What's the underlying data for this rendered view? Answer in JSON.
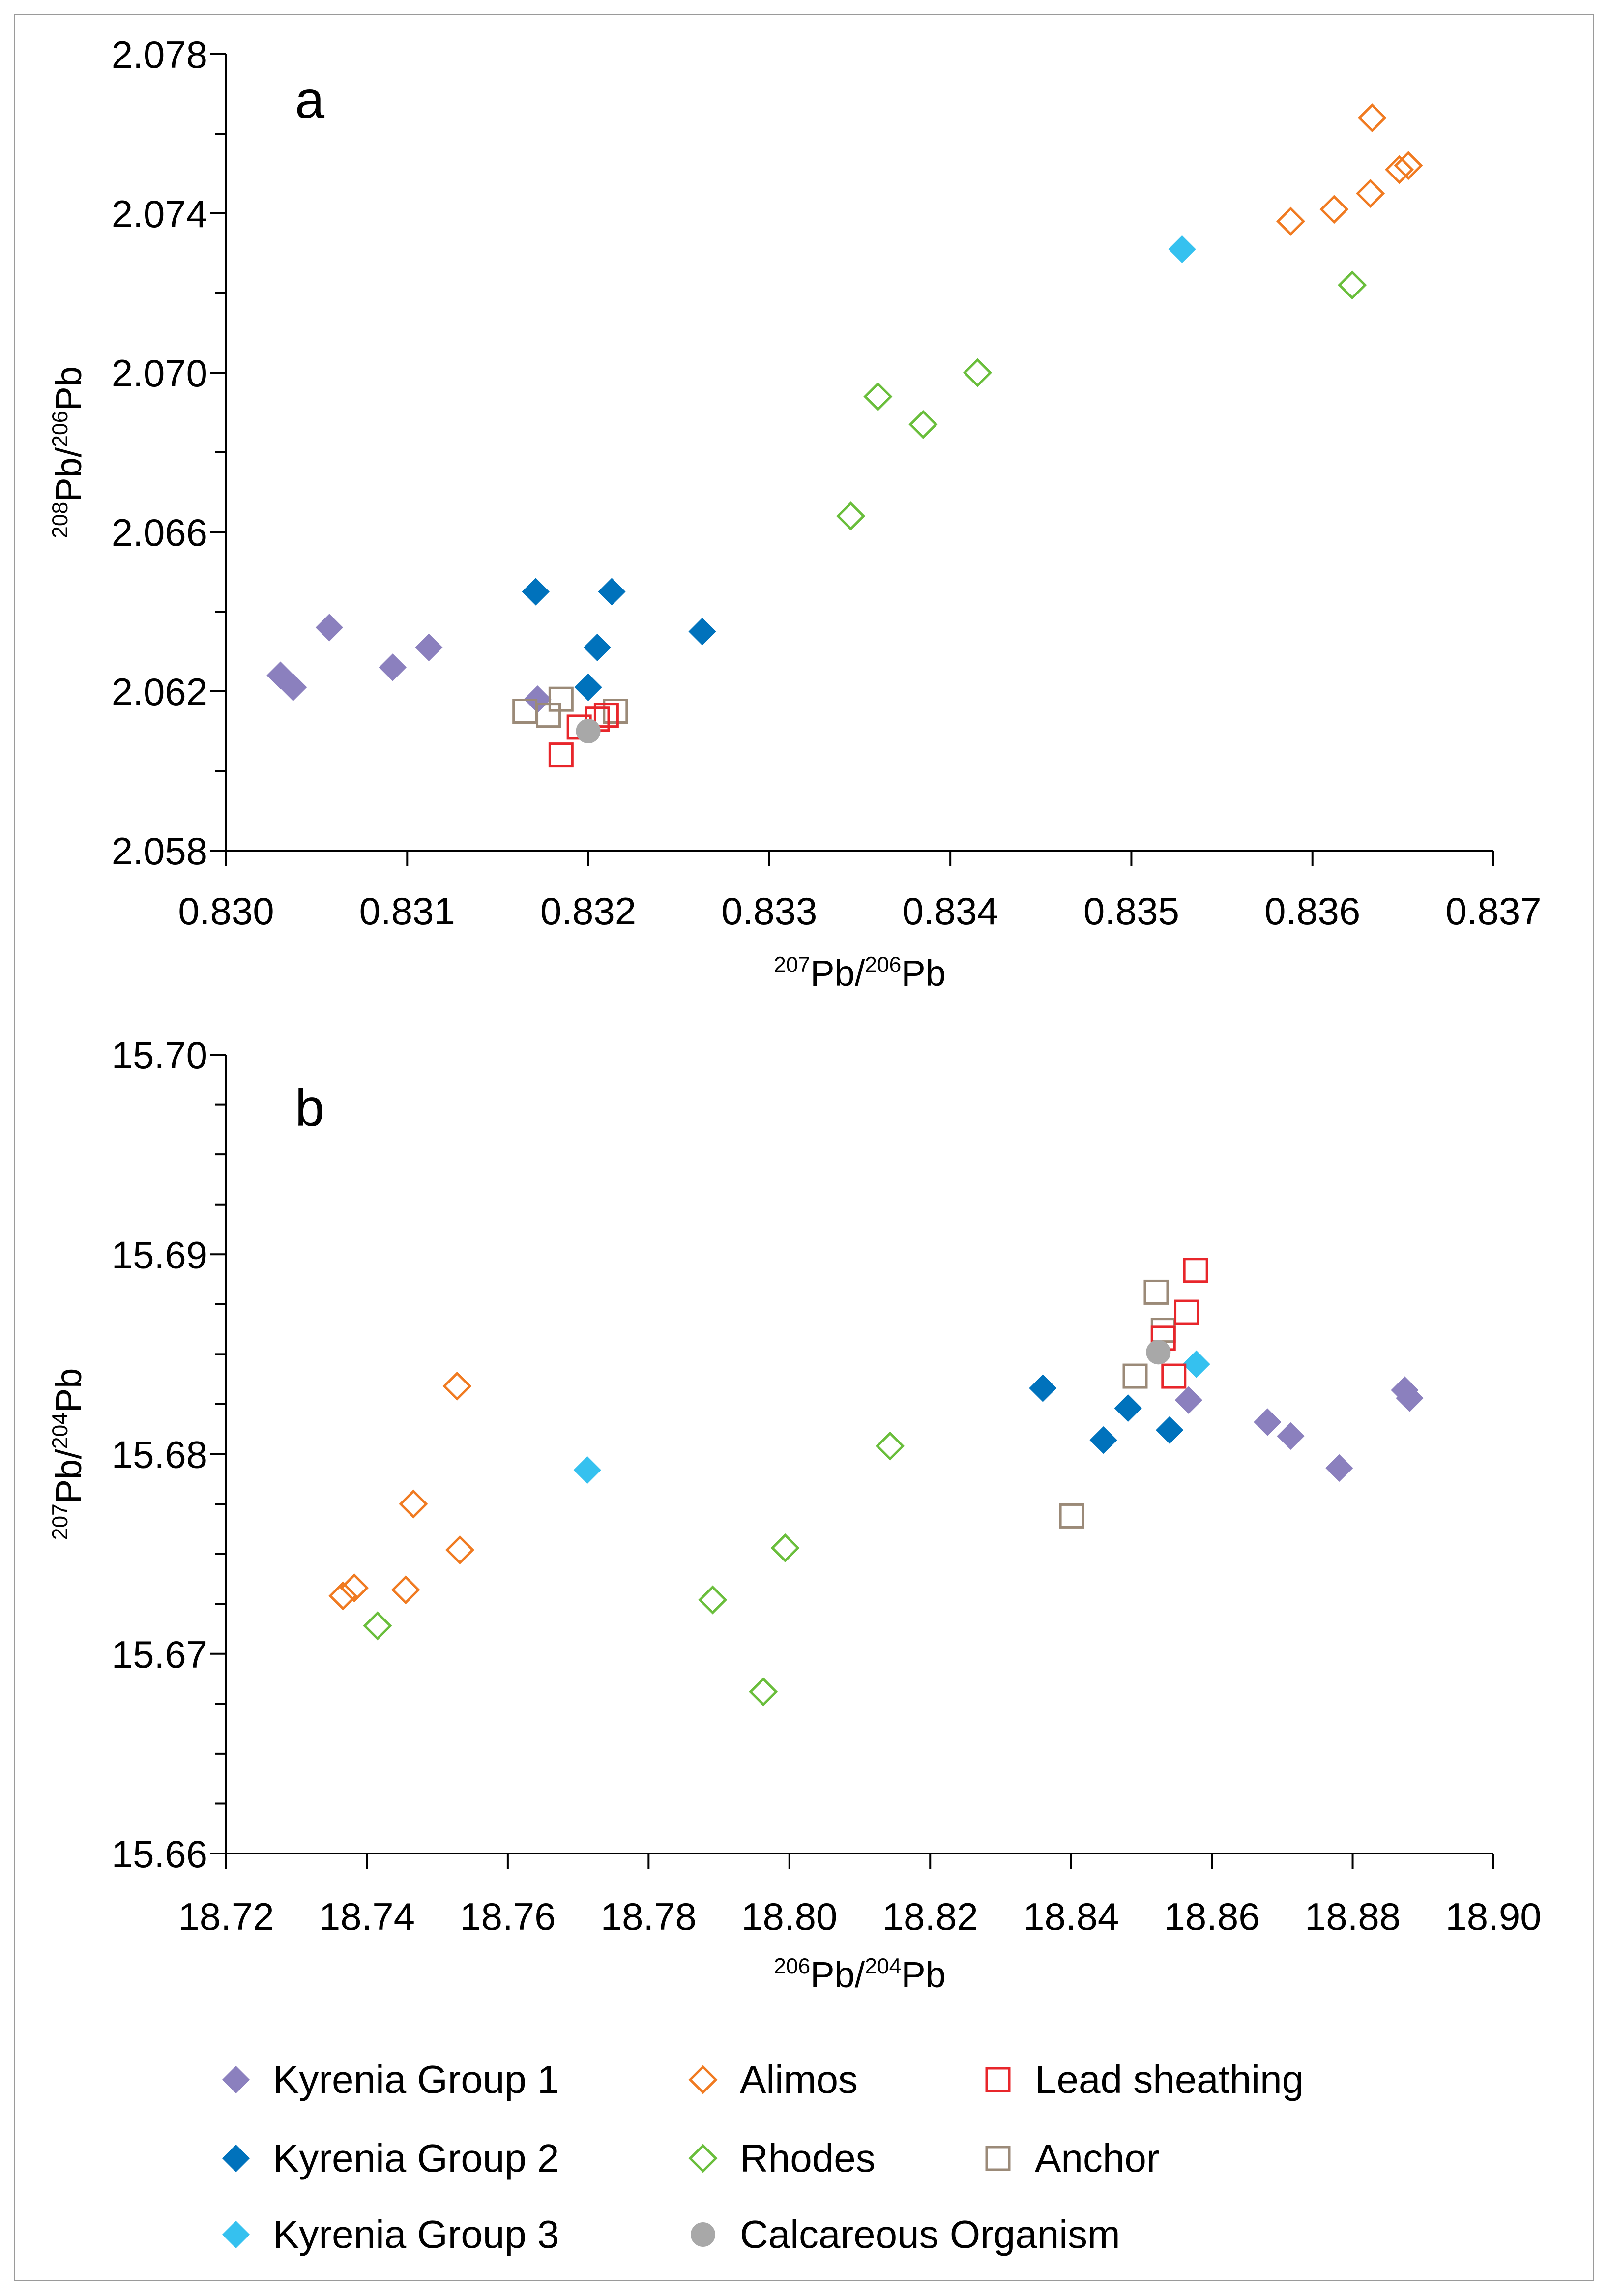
{
  "colors": {
    "kyrenia1": "#8b80be",
    "kyrenia2": "#0072bc",
    "kyrenia3": "#35c1ef",
    "alimos": "#f07b22",
    "rhodes": "#6abe3c",
    "lead": "#e8262b",
    "anchor": "#9b8a78",
    "calcareous": "#a8a8a8",
    "axis": "#000000"
  },
  "chart_data": [
    {
      "id": "a",
      "type": "scatter",
      "panel_label": "a",
      "xlabel": {
        "pre": "207",
        "base1": "Pb/",
        "sup2": "206",
        "base2": "Pb"
      },
      "ylabel": {
        "pre": "208",
        "base1": "Pb/",
        "sup2": "206",
        "base2": "Pb"
      },
      "xlim": [
        0.83,
        0.837
      ],
      "ylim": [
        2.058,
        2.078
      ],
      "xticks": [
        "0.830",
        "0.831",
        "0.832",
        "0.833",
        "0.834",
        "0.835",
        "0.836",
        "0.837"
      ],
      "yticks": [
        "2.058",
        "2.062",
        "2.066",
        "2.070",
        "2.074",
        "2.078"
      ],
      "series": [
        {
          "name": "Kyrenia Group 1",
          "marker": "diamond-filled",
          "color_key": "kyrenia1",
          "points": [
            [
              0.8303,
              2.0624
            ],
            [
              0.83037,
              2.0621
            ],
            [
              0.83057,
              2.0636
            ],
            [
              0.83092,
              2.0626
            ],
            [
              0.83112,
              2.0631
            ],
            [
              0.83172,
              2.0618
            ]
          ]
        },
        {
          "name": "Kyrenia Group 2",
          "marker": "diamond-filled",
          "color_key": "kyrenia2",
          "points": [
            [
              0.83171,
              2.0645
            ],
            [
              0.83213,
              2.0645
            ],
            [
              0.83263,
              2.0635
            ],
            [
              0.83205,
              2.0631
            ],
            [
              0.832,
              2.0621
            ]
          ]
        },
        {
          "name": "Kyrenia Group 3",
          "marker": "diamond-filled",
          "color_key": "kyrenia3",
          "points": [
            [
              0.83528,
              2.0731
            ]
          ]
        },
        {
          "name": "Alimos",
          "marker": "diamond-open",
          "color_key": "alimos",
          "points": [
            [
              0.83633,
              2.0764
            ],
            [
              0.83648,
              2.0751
            ],
            [
              0.83653,
              2.0752
            ],
            [
              0.83632,
              2.0745
            ],
            [
              0.83612,
              2.0741
            ],
            [
              0.83588,
              2.0738
            ]
          ]
        },
        {
          "name": "Rhodes",
          "marker": "diamond-open",
          "color_key": "rhodes",
          "points": [
            [
              0.83622,
              2.0722
            ],
            [
              0.83415,
              2.07
            ],
            [
              0.8336,
              2.0694
            ],
            [
              0.83385,
              2.0687
            ],
            [
              0.83345,
              2.0664
            ]
          ]
        },
        {
          "name": "Lead sheathing",
          "marker": "square-open",
          "color_key": "lead",
          "points": [
            [
              0.83185,
              2.0604
            ],
            [
              0.8321,
              2.0614
            ],
            [
              0.83195,
              2.0611
            ],
            [
              0.83205,
              2.0613
            ]
          ]
        },
        {
          "name": "Anchor",
          "marker": "square-open",
          "color_key": "anchor",
          "points": [
            [
              0.83165,
              2.0615
            ],
            [
              0.83178,
              2.0614
            ],
            [
              0.83185,
              2.0618
            ],
            [
              0.83215,
              2.0615
            ]
          ]
        },
        {
          "name": "Calcareous Organism",
          "marker": "circle-filled",
          "color_key": "calcareous",
          "points": [
            [
              0.832,
              2.061
            ]
          ]
        }
      ]
    },
    {
      "id": "b",
      "type": "scatter",
      "panel_label": "b",
      "xlabel": {
        "pre": "206",
        "base1": "Pb/",
        "sup2": "204",
        "base2": "Pb"
      },
      "ylabel": {
        "pre": "207",
        "base1": "Pb/",
        "sup2": "204",
        "base2": "Pb"
      },
      "xlim": [
        18.72,
        18.9
      ],
      "ylim": [
        15.66,
        15.7
      ],
      "xticks": [
        "18.72",
        "18.74",
        "18.76",
        "18.78",
        "18.80",
        "18.82",
        "18.84",
        "18.86",
        "18.88",
        "18.90"
      ],
      "yticks": [
        "15.66",
        "15.67",
        "15.68",
        "15.69",
        "15.70"
      ],
      "series": [
        {
          "name": "Kyrenia Group 1",
          "marker": "diamond-filled",
          "color_key": "kyrenia1",
          "points": [
            [
              18.8567,
              15.6827
            ],
            [
              18.8679,
              15.6816
            ],
            [
              18.8712,
              15.6809
            ],
            [
              18.8781,
              15.6793
            ],
            [
              18.8874,
              15.6832
            ],
            [
              18.8881,
              15.6828
            ]
          ]
        },
        {
          "name": "Kyrenia Group 2",
          "marker": "diamond-filled",
          "color_key": "kyrenia2",
          "points": [
            [
              18.836,
              15.6833
            ],
            [
              18.8446,
              15.6807
            ],
            [
              18.8481,
              15.6823
            ],
            [
              18.854,
              15.6812
            ]
          ]
        },
        {
          "name": "Kyrenia Group 3",
          "marker": "diamond-filled",
          "color_key": "kyrenia3",
          "points": [
            [
              18.7713,
              15.6792
            ],
            [
              18.8578,
              15.6845
            ]
          ]
        },
        {
          "name": "Alimos",
          "marker": "diamond-open",
          "color_key": "alimos",
          "points": [
            [
              18.7528,
              15.6834
            ],
            [
              18.7466,
              15.6775
            ],
            [
              18.7532,
              15.6752
            ],
            [
              18.7366,
              15.6729
            ],
            [
              18.7382,
              15.6733
            ],
            [
              18.7455,
              15.6732
            ]
          ]
        },
        {
          "name": "Rhodes",
          "marker": "diamond-open",
          "color_key": "rhodes",
          "points": [
            [
              18.8143,
              15.6804
            ],
            [
              18.7994,
              15.6753
            ],
            [
              18.7891,
              15.6727
            ],
            [
              18.7415,
              15.6714
            ],
            [
              18.7963,
              15.6681
            ]
          ]
        },
        {
          "name": "Lead sheathing",
          "marker": "square-open",
          "color_key": "lead",
          "points": [
            [
              18.8577,
              15.6892
            ],
            [
              18.8564,
              15.6871
            ],
            [
              18.8531,
              15.6858
            ],
            [
              18.8546,
              15.6839
            ]
          ]
        },
        {
          "name": "Anchor",
          "marker": "square-open",
          "color_key": "anchor",
          "points": [
            [
              18.8521,
              15.6881
            ],
            [
              18.8531,
              15.6862
            ],
            [
              18.8491,
              15.6839
            ],
            [
              18.8401,
              15.6769
            ]
          ]
        },
        {
          "name": "Calcareous Organism",
          "marker": "circle-filled",
          "color_key": "calcareous",
          "points": [
            [
              18.8524,
              15.6851
            ]
          ]
        }
      ]
    }
  ],
  "legend": [
    {
      "label": "Kyrenia Group 1",
      "marker": "diamond-filled",
      "color_key": "kyrenia1"
    },
    {
      "label": "Alimos",
      "marker": "diamond-open",
      "color_key": "alimos"
    },
    {
      "label": "Lead sheathing",
      "marker": "square-open",
      "color_key": "lead"
    },
    {
      "label": "Kyrenia Group 2",
      "marker": "diamond-filled",
      "color_key": "kyrenia2"
    },
    {
      "label": "Rhodes",
      "marker": "diamond-open",
      "color_key": "rhodes"
    },
    {
      "label": "Anchor",
      "marker": "square-open",
      "color_key": "anchor"
    },
    {
      "label": "Kyrenia Group 3",
      "marker": "diamond-filled",
      "color_key": "kyrenia3"
    },
    {
      "label": "Calcareous Organism",
      "marker": "circle-filled",
      "color_key": "calcareous"
    }
  ]
}
